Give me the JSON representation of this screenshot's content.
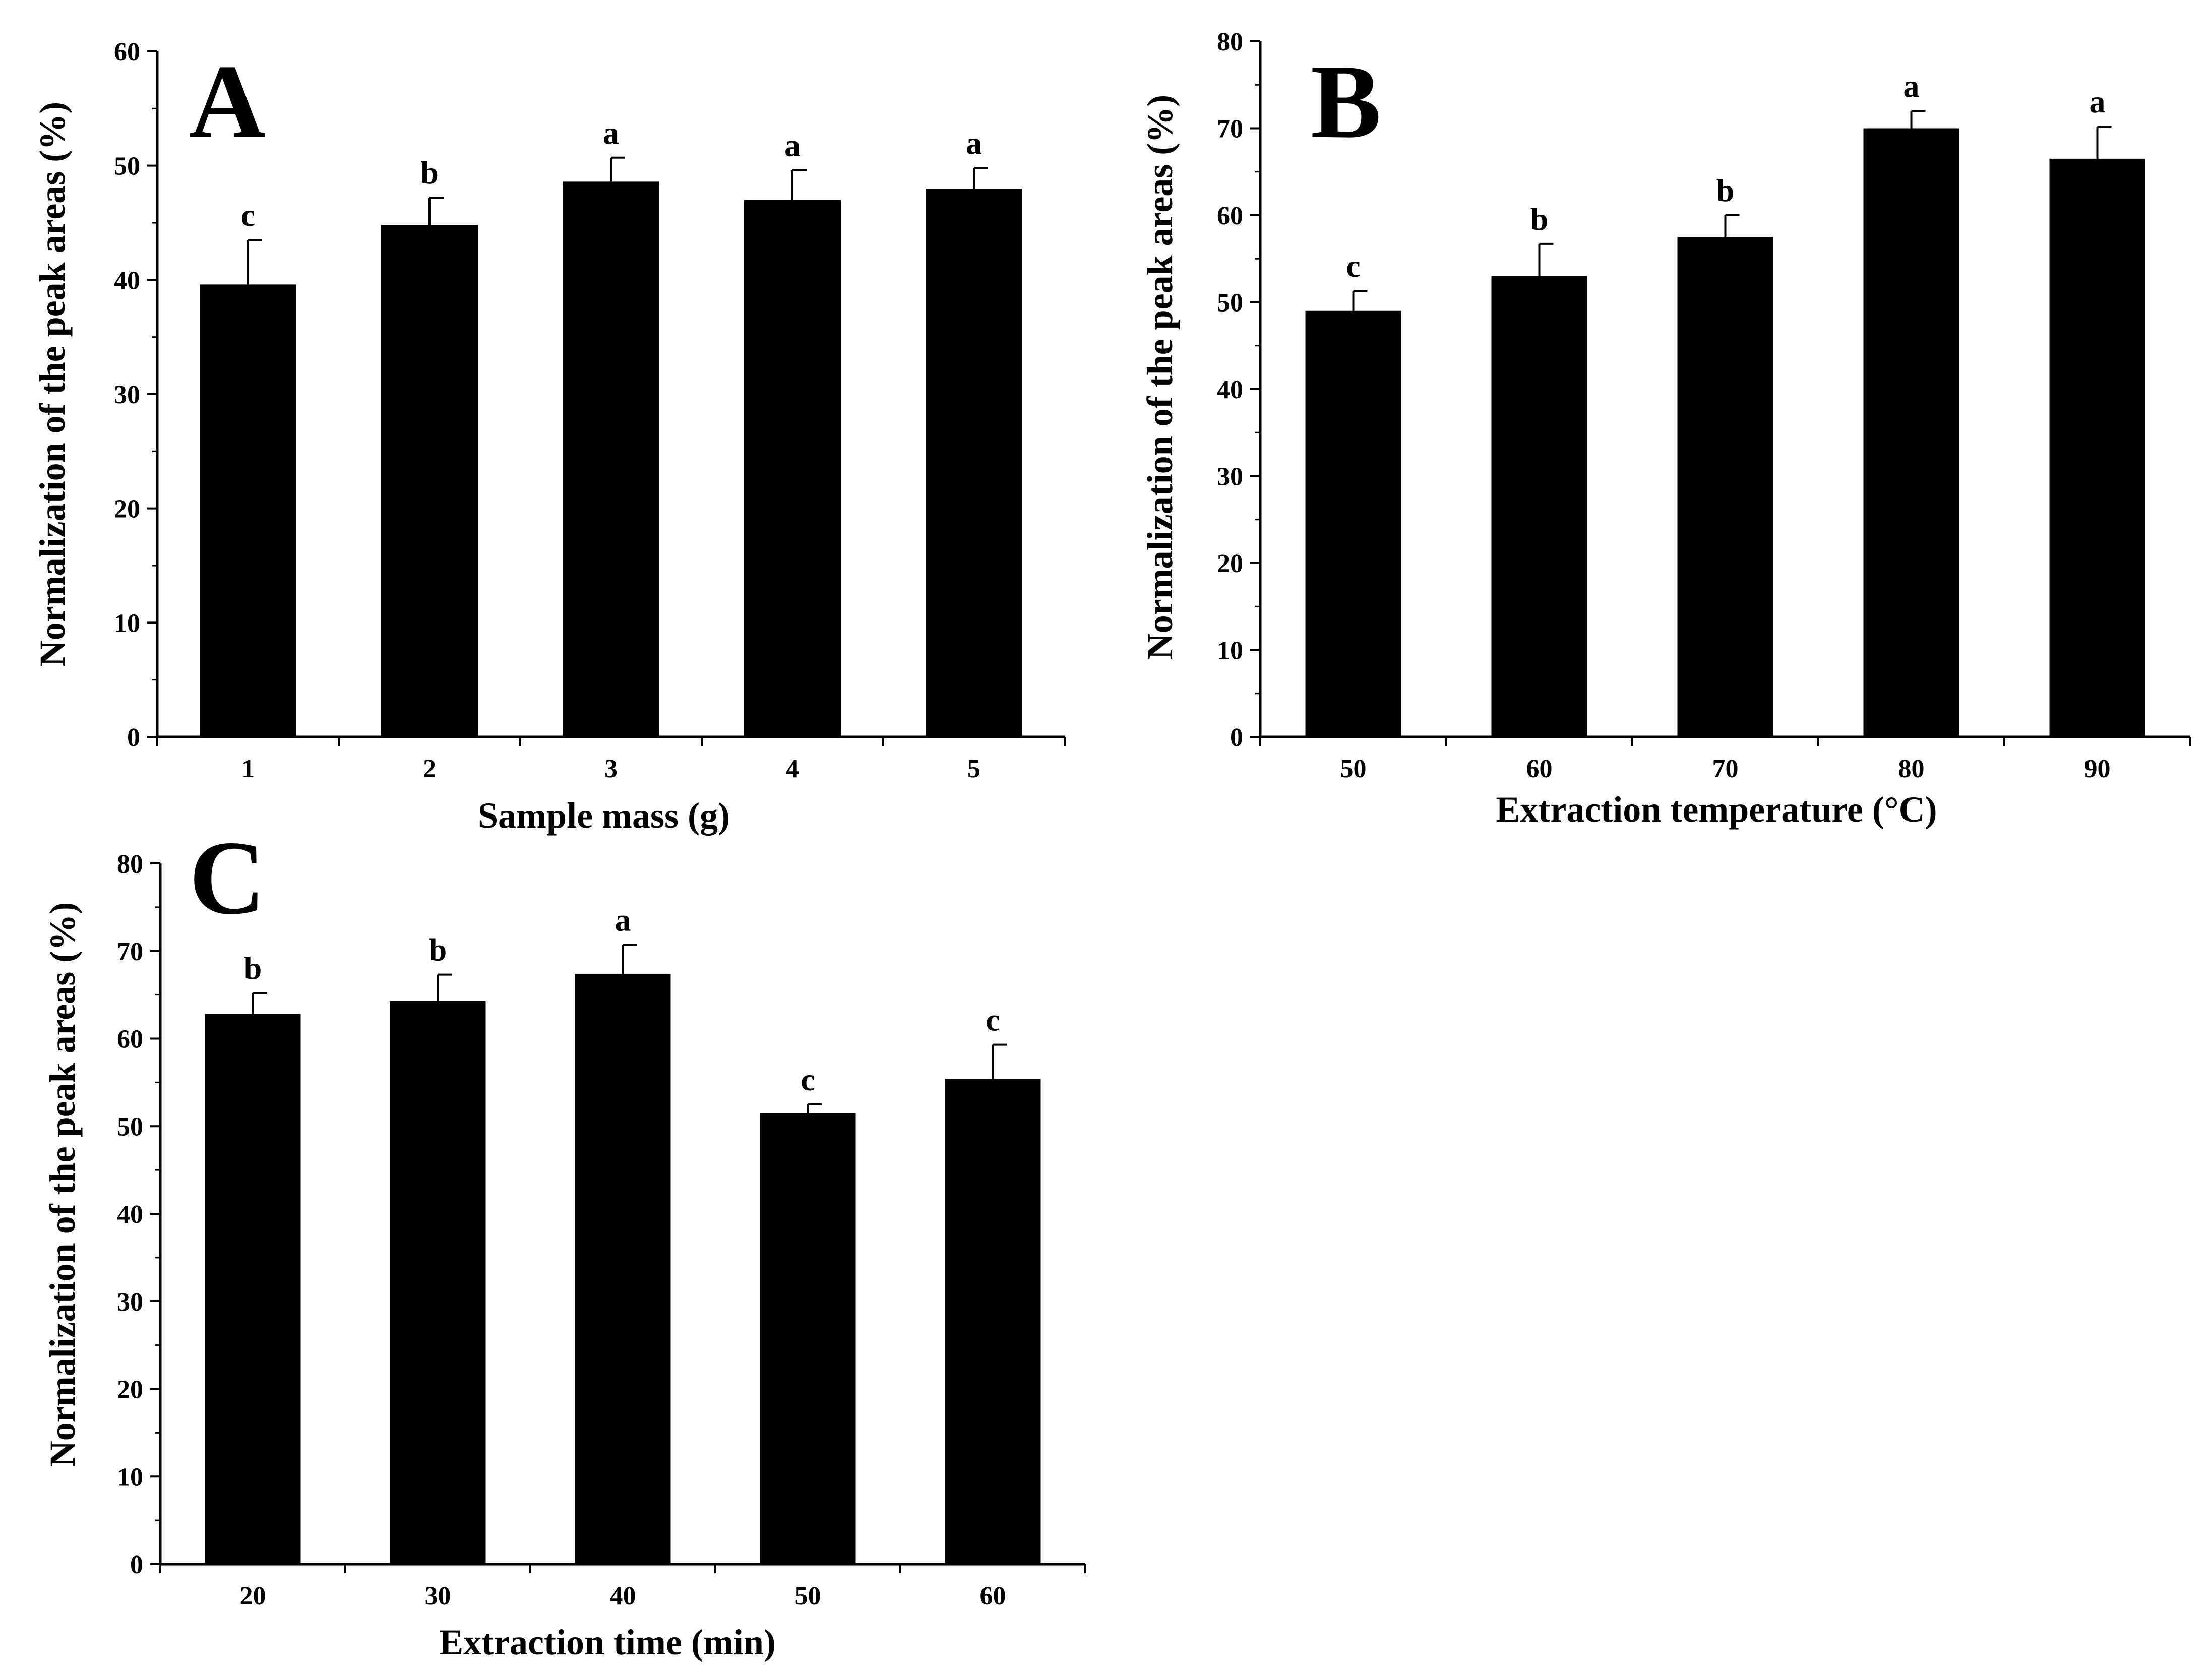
{
  "chart_data": [
    {
      "panel": "A",
      "type": "bar",
      "xlabel": "Sample mass (g)",
      "ylabel": "Normalization of the peak areas (%)",
      "ylim": [
        0,
        60
      ],
      "yticks": [
        "0",
        "10",
        "20",
        "30",
        "40",
        "50",
        "60"
      ],
      "categories": [
        "1",
        "2",
        "3",
        "4",
        "5"
      ],
      "values": [
        39.6,
        44.8,
        48.6,
        47.0,
        48.0
      ],
      "errors": [
        3.9,
        2.4,
        2.1,
        2.6,
        1.8
      ],
      "letters": [
        "c",
        "b",
        "a",
        "a",
        "a"
      ]
    },
    {
      "panel": "B",
      "type": "bar",
      "xlabel": "Extraction temperature (°C)",
      "ylabel": "Normalization of the peak areas (%)",
      "ylim": [
        0,
        80
      ],
      "yticks": [
        "0",
        "10",
        "20",
        "30",
        "40",
        "50",
        "60",
        "70",
        "80"
      ],
      "categories": [
        "50",
        "60",
        "70",
        "80",
        "90"
      ],
      "values": [
        49.0,
        53.0,
        57.5,
        70.0,
        66.5
      ],
      "errors": [
        2.3,
        3.7,
        2.5,
        2.0,
        3.7
      ],
      "letters": [
        "c",
        "b",
        "b",
        "a",
        "a"
      ]
    },
    {
      "panel": "C",
      "type": "bar",
      "xlabel": "Extraction time (min)",
      "ylabel": "Normalization of the peak areas (%)",
      "ylim": [
        0,
        80
      ],
      "yticks": [
        "0",
        "10",
        "20",
        "30",
        "40",
        "50",
        "60",
        "70",
        "80"
      ],
      "categories": [
        "20",
        "30",
        "40",
        "50",
        "60"
      ],
      "values": [
        62.8,
        64.3,
        67.4,
        51.5,
        55.4
      ],
      "errors": [
        2.4,
        3.0,
        3.3,
        1.0,
        3.9
      ],
      "letters": [
        "b",
        "b",
        "a",
        "c",
        "c"
      ]
    }
  ],
  "colors": {
    "bar": "#000000",
    "axis": "#000000",
    "background": "#ffffff"
  }
}
